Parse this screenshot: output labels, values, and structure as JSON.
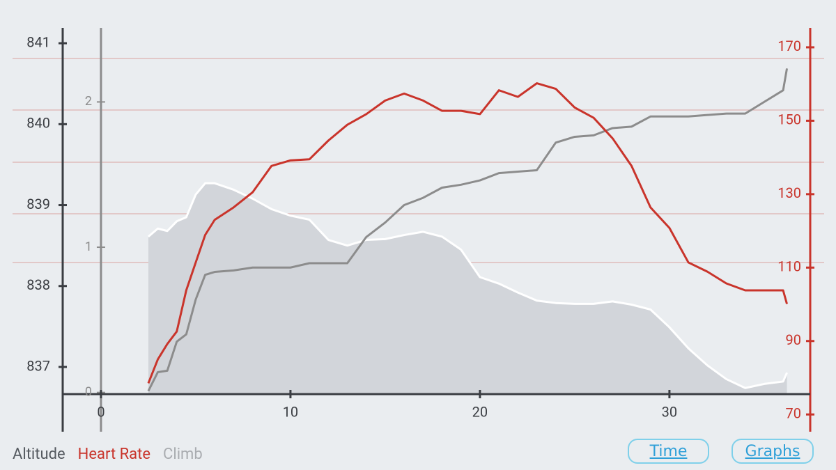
{
  "chart_data": {
    "type": "line",
    "x": [
      2.5,
      3,
      3.5,
      4,
      4.5,
      5,
      5.5,
      6,
      7,
      8,
      9,
      10,
      11,
      12,
      13,
      14,
      15,
      16,
      17,
      18,
      19,
      20,
      21,
      22,
      23,
      24,
      25,
      26,
      27,
      28,
      29,
      30,
      31,
      32,
      33,
      34,
      35,
      36,
      36.2
    ],
    "xlim": [
      -2.02,
      37.43
    ],
    "xticks": [
      0,
      10,
      20,
      30
    ],
    "ylim": [
      836.2,
      841.19
    ],
    "yticks": [
      837,
      838,
      839,
      840,
      841
    ],
    "y2lim": [
      65.3,
      175.3
    ],
    "y2ticks": [
      70,
      90,
      110,
      130,
      150,
      170
    ],
    "y3lim": [
      -0.27,
      2.51
    ],
    "y3ticks": [
      0,
      1,
      2
    ],
    "series": [
      {
        "name": "Altitude",
        "color": "#ffffff",
        "fill": "#d2d5da",
        "legend_color": "#555a60",
        "axis": "y",
        "values": [
          838.61,
          838.71,
          838.68,
          838.8,
          838.85,
          839.13,
          839.27,
          839.27,
          839.19,
          839.08,
          838.95,
          838.87,
          838.82,
          838.57,
          838.5,
          838.57,
          838.58,
          838.63,
          838.67,
          838.61,
          838.45,
          838.11,
          838.03,
          837.92,
          837.82,
          837.79,
          837.78,
          837.78,
          837.81,
          837.77,
          837.71,
          837.49,
          837.23,
          837.02,
          836.85,
          836.74,
          836.79,
          836.82,
          836.93
        ]
      },
      {
        "name": "Heart Rate",
        "color": "#c9342b",
        "legend_color": "#c9342b",
        "axis": "y2",
        "values": [
          78.5,
          85,
          89.2,
          92.6,
          103.8,
          111.4,
          118.9,
          123,
          126.4,
          130.5,
          137.7,
          139.2,
          139.5,
          144.6,
          148.9,
          151.8,
          155.5,
          157.4,
          155.5,
          152.7,
          152.7,
          151.8,
          158.3,
          156.5,
          160.2,
          158.7,
          153.6,
          150.8,
          145.2,
          137.7,
          126.4,
          120.8,
          111.4,
          108.9,
          105.7,
          103.8,
          103.8,
          103.8,
          100.1
        ]
      },
      {
        "name": "Climb",
        "color": "#8c8c8c",
        "legend_color": "#a9acb0",
        "axis": "y3",
        "values": [
          0.01,
          0.14,
          0.15,
          0.35,
          0.4,
          0.64,
          0.81,
          0.83,
          0.84,
          0.86,
          0.86,
          0.86,
          0.89,
          0.89,
          0.89,
          1.07,
          1.17,
          1.29,
          1.34,
          1.41,
          1.43,
          1.46,
          1.51,
          1.52,
          1.53,
          1.72,
          1.76,
          1.77,
          1.82,
          1.83,
          1.9,
          1.9,
          1.9,
          1.91,
          1.92,
          1.92,
          2.0,
          2.08,
          2.23
        ]
      }
    ]
  },
  "buttons": [
    "Time",
    "Graphs"
  ]
}
